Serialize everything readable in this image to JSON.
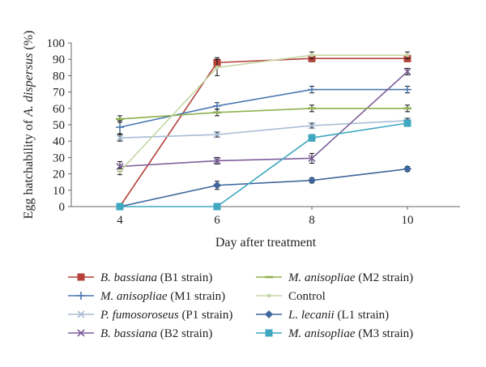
{
  "chart_data": {
    "type": "line",
    "title": "",
    "xlabel": "Day after treatment",
    "ylabel": {
      "prefix": "Egg hatchability of ",
      "italic": "A. dispersus",
      "suffix": " (%)"
    },
    "ylim": [
      0,
      100
    ],
    "yticks": [
      "0",
      "10",
      "20",
      "30",
      "40",
      "50",
      "60",
      "70",
      "80",
      "90",
      "100"
    ],
    "x": [
      "4",
      "6",
      "8",
      "10"
    ],
    "grid": false,
    "legend_position": "bottom",
    "series": [
      {
        "name_italic": "B. bassiana",
        "name_rest": " (B1 strain)",
        "color": "#b5413a",
        "marker": "square",
        "values": [
          0,
          88,
          90.5,
          90.5
        ],
        "errors": [
          0,
          3,
          2,
          2
        ]
      },
      {
        "name_italic": "M. anisopliae",
        "name_rest": " (M1 strain)",
        "color": "#4a77b0",
        "marker": "plus",
        "values": [
          48.5,
          61.5,
          71.5,
          71.5
        ],
        "errors": [
          4,
          2,
          2,
          2
        ]
      },
      {
        "name_italic": "P. fumosoroseus",
        "name_rest": " (P1 strain)",
        "color": "#a9bcd4",
        "marker": "x",
        "values": [
          42,
          44,
          49.5,
          52.5
        ],
        "errors": [
          2,
          1.5,
          1.5,
          1.5
        ]
      },
      {
        "name_italic": "B. bassiana",
        "name_rest": " (B2 strain)",
        "color": "#7e5f9b",
        "marker": "x",
        "values": [
          24.5,
          28,
          29.5,
          82.5
        ],
        "errors": [
          3,
          2,
          3,
          2
        ]
      },
      {
        "name_italic": "M. anisopliae",
        "name_rest": " (M2 strain)",
        "color": "#8fb14f",
        "marker": "dash",
        "values": [
          53.5,
          57.5,
          60,
          60
        ],
        "errors": [
          2,
          2,
          2,
          2
        ]
      },
      {
        "name_italic": "",
        "name_rest": "Control",
        "color": "#c6d7a6",
        "marker": "dot",
        "values": [
          21.5,
          85,
          92.5,
          92.5
        ],
        "errors": [
          2,
          5,
          2,
          2
        ]
      },
      {
        "name_italic": "L. lecanii",
        "name_rest": " (L1 strain)",
        "color": "#3e669a",
        "marker": "diamond",
        "values": [
          0,
          13,
          16,
          23
        ],
        "errors": [
          0,
          2.5,
          1.5,
          1.5
        ]
      },
      {
        "name_italic": "M. anisopliae",
        "name_rest": " (M3 strain)",
        "color": "#3fa7c0",
        "marker": "square",
        "values": [
          0,
          0,
          42,
          51
        ],
        "errors": [
          0,
          0,
          2,
          2
        ]
      }
    ]
  }
}
